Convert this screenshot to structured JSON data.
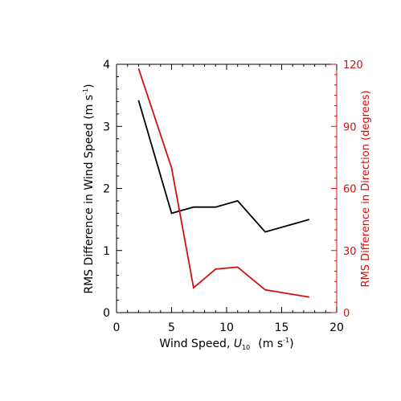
{
  "chart_data": {
    "type": "line",
    "xlabel": "Wind Speed, ",
    "xlabel_symbol": "U",
    "xlabel_subscript": "10",
    "xlabel_units": "(m s",
    "xlabel_units_exp": "-1",
    "xlabel_units_close": ")",
    "ylabel_left": "RMS Difference in Wind Speed  (m s",
    "ylabel_left_exp": "-1",
    "ylabel_left_close": ")",
    "ylabel_right": "RMS Difference in Direction  (degrees)",
    "xlim": [
      0,
      20
    ],
    "ylim_left": [
      0,
      4
    ],
    "ylim_right": [
      0,
      120
    ],
    "x_ticks": [
      "0",
      "5",
      "10",
      "15",
      "20"
    ],
    "y_left_ticks": [
      "0",
      "1",
      "2",
      "3",
      "4"
    ],
    "y_right_ticks": [
      "0",
      "30",
      "60",
      "90",
      "120"
    ],
    "grid": false,
    "series": [
      {
        "axis": "left",
        "color": "#000000",
        "x": [
          2,
          5,
          7,
          9,
          11,
          13.5,
          17.5
        ],
        "values": [
          3.42,
          1.6,
          1.7,
          1.7,
          1.8,
          1.3,
          1.5
        ]
      },
      {
        "axis": "right",
        "color": "#d01010",
        "x": [
          2,
          5,
          7,
          9,
          11,
          13.5,
          17.5
        ],
        "values": [
          118,
          70,
          12,
          21,
          22,
          11,
          7.5
        ]
      }
    ]
  }
}
